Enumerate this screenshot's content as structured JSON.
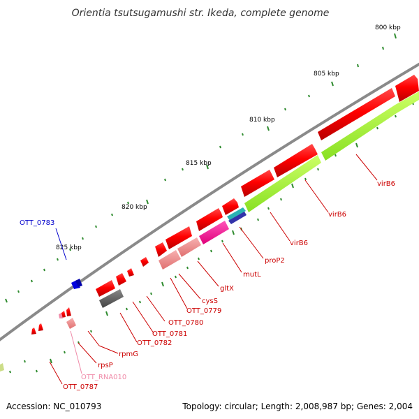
{
  "title": "Orientia tsutsugamushi str. Ikeda, complete genome",
  "footer": {
    "accession": "Accession: NC_010793",
    "summary": "Topology: circular; Length: 2,008,987 bp; Genes: 2,004"
  },
  "ticks": [
    {
      "label": "800 kbp"
    },
    {
      "label": "805 kbp"
    },
    {
      "label": "810 kbp"
    },
    {
      "label": "815 kbp"
    },
    {
      "label": "820 kbp"
    },
    {
      "label": "825 kbp"
    }
  ],
  "genes": [
    {
      "label": "virB6",
      "color": "#cc0000"
    },
    {
      "label": "virB6",
      "color": "#cc0000"
    },
    {
      "label": "virB6",
      "color": "#cc0000"
    },
    {
      "label": "proP2",
      "color": "#cc0000"
    },
    {
      "label": "mutL",
      "color": "#cc0000"
    },
    {
      "label": "gltX",
      "color": "#cc0000"
    },
    {
      "label": "cysS",
      "color": "#cc0000"
    },
    {
      "label": "OTT_0779",
      "color": "#cc0000"
    },
    {
      "label": "OTT_0780",
      "color": "#cc0000"
    },
    {
      "label": "OTT_0781",
      "color": "#cc0000"
    },
    {
      "label": "OTT_0782",
      "color": "#cc0000"
    },
    {
      "label": "rpmG",
      "color": "#cc0000"
    },
    {
      "label": "rpsP",
      "color": "#cc0000"
    },
    {
      "label": "OTT_RNA010",
      "color": "#f08aa8"
    },
    {
      "label": "OTT_0787",
      "color": "#cc0000"
    },
    {
      "label": "OTT_0783",
      "color": "#0000cc"
    }
  ],
  "colors": {
    "forward_cds": "#ff0000",
    "reverse_cds": "#99ff33",
    "rna": "#f4a0a0",
    "backbone": "#808080",
    "tick": "#2e8b2e"
  }
}
